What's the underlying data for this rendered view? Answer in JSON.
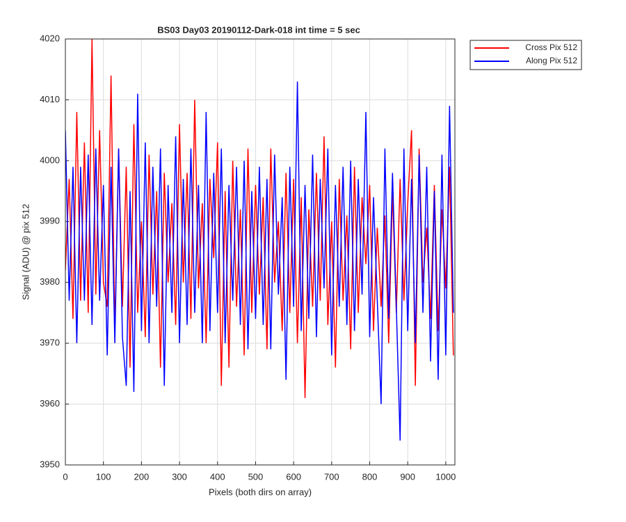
{
  "chart_data": {
    "type": "line",
    "title": "BS03 Day03 20190112-Dark-018 int time = 5 sec",
    "x_label": "Pixels (both dirs on array)",
    "y_label": "Signal (ADU) @ pix 512",
    "x": [
      0,
      10,
      20,
      30,
      40,
      50,
      60,
      70,
      80,
      90,
      100,
      110,
      120,
      130,
      140,
      150,
      160,
      170,
      180,
      190,
      200,
      210,
      220,
      230,
      240,
      250,
      260,
      270,
      280,
      290,
      300,
      310,
      320,
      330,
      340,
      350,
      360,
      370,
      380,
      390,
      400,
      410,
      420,
      430,
      440,
      450,
      460,
      470,
      480,
      490,
      500,
      510,
      520,
      530,
      540,
      550,
      560,
      570,
      580,
      590,
      600,
      610,
      620,
      630,
      640,
      650,
      660,
      670,
      680,
      690,
      700,
      710,
      720,
      730,
      740,
      750,
      760,
      770,
      780,
      790,
      800,
      810,
      820,
      830,
      840,
      850,
      860,
      870,
      880,
      890,
      900,
      910,
      920,
      930,
      940,
      950,
      960,
      970,
      980,
      990,
      1000,
      1010,
      1020
    ],
    "series": [
      {
        "name": "Cross Pix 512",
        "color": "#ff0000",
        "values": [
          3982,
          3997,
          3974,
          4008,
          3977,
          4003,
          3975,
          4020,
          3978,
          4005,
          3980,
          3976,
          4014,
          3972,
          4002,
          3976,
          3999,
          3966,
          4006,
          3975,
          3990,
          3971,
          4001,
          3978,
          3995,
          3966,
          3998,
          3980,
          3993,
          3973,
          4006,
          3980,
          3998,
          3974,
          4010,
          3979,
          3993,
          3970,
          3997,
          3984,
          4003,
          3963,
          3995,
          3966,
          4000,
          3976,
          3992,
          3968,
          4002,
          3975,
          3996,
          3978,
          3994,
          3969,
          4002,
          3980,
          3990,
          3972,
          3998,
          3975,
          3997,
          3970,
          3994,
          3961,
          3992,
          3976,
          3998,
          3977,
          4004,
          3973,
          3990,
          3966,
          3997,
          3977,
          3991,
          3969,
          3999,
          3975,
          3994,
          3983,
          3996,
          3972,
          3989,
          3976,
          3991,
          3970,
          3995,
          3975,
          3997,
          3977,
          3993,
          4005,
          3963,
          4002,
          3980,
          3989,
          3974,
          3996,
          3972,
          3992,
          3979,
          3999,
          3968
        ]
      },
      {
        "name": "Along Pix 512",
        "color": "#0000ff",
        "values": [
          4005,
          3977,
          3999,
          3970,
          3999,
          3977,
          4001,
          3973,
          4002,
          3977,
          3996,
          3968,
          3999,
          3970,
          4002,
          3971,
          3963,
          3995,
          3962,
          4011,
          3972,
          4003,
          3970,
          3999,
          3976,
          4002,
          3963,
          3996,
          3975,
          4004,
          3970,
          3997,
          3973,
          4002,
          3975,
          3996,
          3970,
          4008,
          3972,
          3998,
          3975,
          4002,
          3970,
          3996,
          3977,
          3999,
          3973,
          4000,
          3969,
          3995,
          3974,
          3999,
          3973,
          3997,
          3969,
          4001,
          3978,
          3994,
          3964,
          3999,
          3976,
          4013,
          3972,
          3996,
          3974,
          4001,
          3971,
          3997,
          3979,
          4002,
          3968,
          3996,
          3976,
          3999,
          3973,
          4000,
          3972,
          3997,
          3978,
          4008,
          3971,
          3994,
          3977,
          3960,
          4002,
          3974,
          3998,
          3976,
          3954,
          4002,
          3972,
          3997,
          3970,
          4001,
          3975,
          3999,
          3967,
          3995,
          3964,
          4001,
          3968,
          4009,
          3975
        ]
      }
    ],
    "xlim": [
      0,
      1024
    ],
    "ylim": [
      3950,
      4020
    ],
    "xticks": [
      0,
      100,
      200,
      300,
      400,
      500,
      600,
      700,
      800,
      900,
      1000
    ],
    "yticks": [
      3950,
      3960,
      3970,
      3980,
      3990,
      4000,
      4010,
      4020
    ],
    "grid": true,
    "legend": "outside-top-right"
  }
}
